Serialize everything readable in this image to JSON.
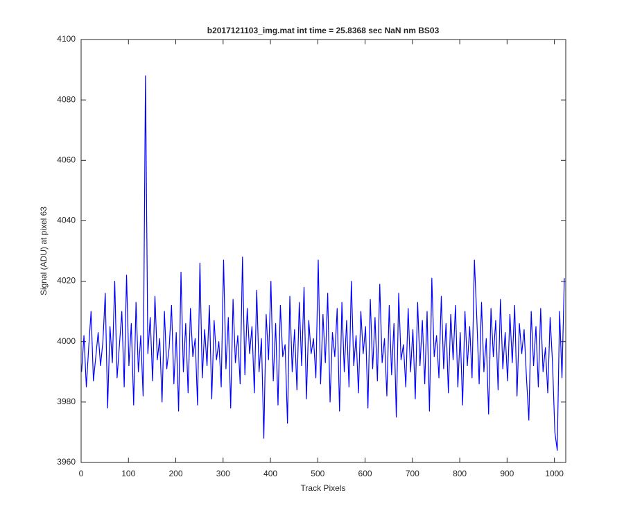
{
  "chart_data": {
    "type": "line",
    "title": "b2017121103_img.mat int time = 25.8368 sec  NaN nm BS03",
    "xlabel": "Track Pixels",
    "ylabel": "Signal (ADU) at pixel 63",
    "xlim": [
      0,
      1024
    ],
    "ylim": [
      3960,
      4100
    ],
    "xticks": [
      0,
      100,
      200,
      300,
      400,
      500,
      600,
      700,
      800,
      900,
      1000
    ],
    "yticks": [
      3960,
      3980,
      4000,
      4020,
      4040,
      4060,
      4080,
      4100
    ],
    "grid": false,
    "x": [
      1,
      6,
      11,
      16,
      21,
      26,
      31,
      36,
      41,
      46,
      51,
      56,
      61,
      66,
      71,
      76,
      81,
      86,
      91,
      96,
      101,
      106,
      111,
      116,
      121,
      126,
      131,
      136,
      141,
      146,
      151,
      156,
      161,
      166,
      171,
      176,
      181,
      186,
      191,
      196,
      201,
      206,
      211,
      216,
      221,
      226,
      231,
      236,
      241,
      246,
      251,
      256,
      261,
      266,
      271,
      276,
      281,
      286,
      291,
      296,
      301,
      306,
      311,
      316,
      321,
      326,
      331,
      336,
      341,
      346,
      351,
      356,
      361,
      366,
      371,
      376,
      381,
      386,
      391,
      396,
      401,
      406,
      411,
      416,
      421,
      426,
      431,
      436,
      441,
      446,
      451,
      456,
      461,
      466,
      471,
      476,
      481,
      486,
      491,
      496,
      501,
      506,
      511,
      516,
      521,
      526,
      531,
      536,
      541,
      546,
      551,
      556,
      561,
      566,
      571,
      576,
      581,
      586,
      591,
      596,
      601,
      606,
      611,
      616,
      621,
      626,
      631,
      636,
      641,
      646,
      651,
      656,
      661,
      666,
      671,
      676,
      681,
      686,
      691,
      696,
      701,
      706,
      711,
      716,
      721,
      726,
      731,
      736,
      741,
      746,
      751,
      756,
      761,
      766,
      771,
      776,
      781,
      786,
      791,
      796,
      801,
      806,
      811,
      816,
      821,
      826,
      831,
      836,
      841,
      846,
      851,
      856,
      861,
      866,
      871,
      876,
      881,
      886,
      891,
      896,
      901,
      906,
      911,
      916,
      921,
      926,
      931,
      936,
      941,
      946,
      951,
      956,
      961,
      966,
      971,
      976,
      981,
      986,
      991,
      996,
      1001,
      1006,
      1011,
      1016,
      1021
    ],
    "series": [
      {
        "color": "#0000ff",
        "values": [
          3990,
          4002,
          3985,
          3998,
          4010,
          3987,
          3995,
          4003,
          3992,
          4000,
          4016,
          3978,
          4005,
          3993,
          4020,
          3988,
          3999,
          4010,
          3985,
          4022,
          3992,
          4006,
          3979,
          4013,
          3990,
          4002,
          3982,
          4088,
          3996,
          4008,
          3987,
          4015,
          3994,
          4001,
          3980,
          4010,
          3991,
          3998,
          4012,
          3986,
          4003,
          3977,
          4023,
          3990,
          4006,
          3983,
          4011,
          3995,
          4001,
          3979,
          4026,
          3988,
          4004,
          3992,
          4012,
          3981,
          4007,
          3994,
          4000,
          3985,
          4027,
          3991,
          4008,
          3978,
          4014,
          3993,
          4002,
          3986,
          4028,
          3989,
          4011,
          3996,
          4005,
          3983,
          4017,
          3990,
          4001,
          3968,
          4009,
          3994,
          4020,
          3987,
          4006,
          3979,
          4012,
          3995,
          3999,
          3973,
          4015,
          3990,
          4004,
          3984,
          4013,
          3992,
          4018,
          3981,
          4007,
          3996,
          4001,
          3988,
          4027,
          3986,
          4009,
          3993,
          4016,
          3980,
          4003,
          3995,
          4011,
          3977,
          4013,
          3990,
          4007,
          3985,
          4020,
          3992,
          4002,
          3983,
          4010,
          3996,
          4005,
          3978,
          4014,
          3991,
          4008,
          3987,
          4019,
          3993,
          4001,
          3982,
          4012,
          3989,
          4006,
          3975,
          4016,
          3994,
          3999,
          3985,
          4011,
          3990,
          4004,
          3981,
          4013,
          3992,
          4007,
          3986,
          4010,
          3977,
          4021,
          3995,
          4002,
          3988,
          4015,
          3991,
          4006,
          3983,
          4009,
          3994,
          4012,
          3985,
          4003,
          3979,
          4010,
          3992,
          4005,
          3988,
          4027,
          4008,
          3986,
          4013,
          3990,
          4001,
          3976,
          4011,
          3995,
          4007,
          3984,
          4014,
          3991,
          4003,
          3987,
          4009,
          3993,
          4012,
          3982,
          4006,
          3996,
          4004,
          3988,
          3974,
          4010,
          3992,
          4005,
          3985,
          4011,
          3990,
          3998,
          3983,
          4008,
          3993,
          3970,
          3964,
          4010,
          3988,
          4021
        ]
      }
    ]
  }
}
